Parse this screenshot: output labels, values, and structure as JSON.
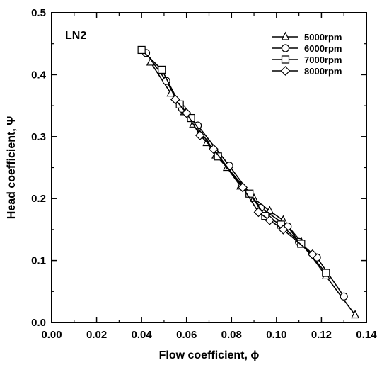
{
  "chart_data": {
    "type": "line",
    "panel_label": "LN2",
    "xlabel": "Flow coefficient, ϕ",
    "ylabel": "Head coefficient, Ψ",
    "xlim": [
      0.0,
      0.14
    ],
    "ylim": [
      0.0,
      0.5
    ],
    "x_ticks": [
      "0.00",
      "0.02",
      "0.04",
      "0.06",
      "0.08",
      "0.10",
      "0.12",
      "0.14"
    ],
    "y_ticks": [
      "0.0",
      "0.1",
      "0.2",
      "0.3",
      "0.4",
      "0.5"
    ],
    "grid": false,
    "legend_position": "top-right",
    "series": [
      {
        "name": "5000rpm",
        "marker": "triangle",
        "x": [
          0.044,
          0.053,
          0.059,
          0.063,
          0.069,
          0.073,
          0.078,
          0.084,
          0.09,
          0.097,
          0.103,
          0.111,
          0.122,
          0.135
        ],
        "y": [
          0.42,
          0.37,
          0.34,
          0.32,
          0.29,
          0.27,
          0.25,
          0.22,
          0.2,
          0.18,
          0.165,
          0.13,
          0.075,
          0.012
        ]
      },
      {
        "name": "6000rpm",
        "marker": "circle",
        "x": [
          0.042,
          0.051,
          0.058,
          0.065,
          0.079,
          0.093,
          0.105,
          0.11,
          0.118,
          0.13
        ],
        "y": [
          0.435,
          0.39,
          0.345,
          0.318,
          0.253,
          0.185,
          0.155,
          0.13,
          0.105,
          0.042
        ]
      },
      {
        "name": "7000rpm",
        "marker": "square",
        "x": [
          0.04,
          0.049,
          0.057,
          0.062,
          0.074,
          0.088,
          0.095,
          0.102,
          0.111,
          0.122
        ],
        "y": [
          0.44,
          0.408,
          0.352,
          0.33,
          0.268,
          0.208,
          0.172,
          0.158,
          0.127,
          0.08
        ]
      },
      {
        "name": "8000rpm",
        "marker": "diamond",
        "x": [
          0.055,
          0.06,
          0.066,
          0.072,
          0.085,
          0.092,
          0.097,
          0.103,
          0.116
        ],
        "y": [
          0.36,
          0.338,
          0.302,
          0.28,
          0.218,
          0.178,
          0.165,
          0.15,
          0.11
        ]
      }
    ]
  }
}
